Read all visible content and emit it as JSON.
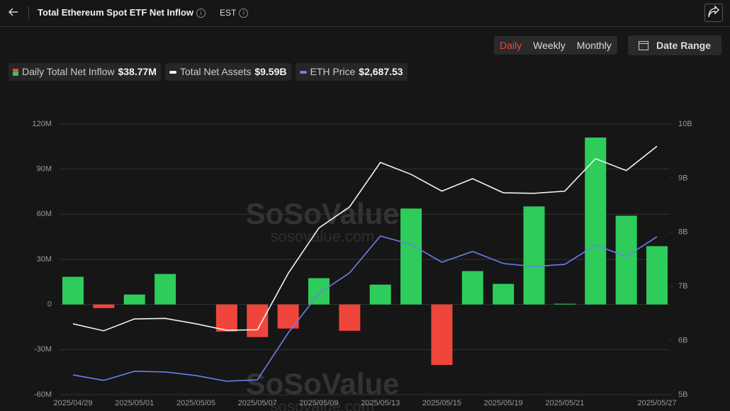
{
  "header": {
    "title": "Total Ethereum Spot ETF Net Inflow",
    "timezone": "EST",
    "periods": [
      "Daily",
      "Weekly",
      "Monthly"
    ],
    "date_range": "Date Range",
    "watermark": "SoSoValue",
    "watermark_url": "sosovalue.com"
  },
  "chart_data": {
    "type": "bar-line",
    "categories": [
      "2025/04/29",
      null,
      "2025/05/01",
      null,
      "2025/05/05",
      null,
      "2025/05/07",
      null,
      "2025/05/09",
      null,
      "2025/05/13",
      null,
      "2025/05/15",
      null,
      "2025/05/19",
      null,
      "2025/05/21",
      null,
      null,
      "2025/05/27"
    ],
    "series": [
      {
        "name": "Daily Total Net Inflow",
        "last_label": "$38.77M",
        "type": "bar",
        "color": "#2ecc5a",
        "negative_color": "#f0453a",
        "values": [
          18.4,
          -2.4,
          6.6,
          20.3,
          0,
          -18,
          -21.7,
          -16,
          17.5,
          -17.5,
          13.2,
          63.8,
          -40.2,
          22.2,
          13.7,
          65.2,
          0.5,
          111,
          59,
          38.77
        ]
      },
      {
        "name": "Total Net Assets",
        "last_label": "$9.59B",
        "type": "line",
        "axis": "y2",
        "color": "#f2f2f2",
        "values": [
          6.31,
          6.18,
          6.4,
          6.41,
          6.31,
          6.19,
          6.2,
          7.24,
          8.08,
          8.47,
          9.29,
          9.07,
          8.76,
          8.99,
          8.73,
          8.72,
          8.76,
          9.36,
          9.14,
          9.59
        ]
      },
      {
        "name": "ETH Price",
        "last_label": "$2,687.53",
        "type": "line",
        "axis": "none",
        "color": "#6b80f0",
        "values": [
          1840,
          1806,
          1862,
          1858,
          1836,
          1801,
          1810,
          2097,
          2340,
          2466,
          2692,
          2640,
          2531,
          2597,
          2523,
          2505,
          2518,
          2636,
          2566,
          2687.53
        ]
      }
    ],
    "ylim": [
      -60,
      120
    ],
    "yticks": [
      {
        "value": -60,
        "label": "-60M"
      },
      {
        "value": -30,
        "label": "-30M"
      },
      0,
      {
        "value": 30,
        "label": "30M"
      },
      {
        "value": 60,
        "label": "60M"
      },
      {
        "value": 90,
        "label": "90M"
      },
      {
        "value": 120,
        "label": "120M"
      }
    ],
    "y2lim": [
      5,
      10
    ],
    "y2ticks": [
      {
        "value": 5,
        "label": "5B"
      },
      {
        "value": 6,
        "label": "6B"
      },
      {
        "value": 7,
        "label": "7B"
      },
      {
        "value": 8,
        "label": "8B"
      },
      {
        "value": 9,
        "label": "9B"
      },
      {
        "value": 10,
        "label": "10B"
      }
    ],
    "grid": true
  }
}
